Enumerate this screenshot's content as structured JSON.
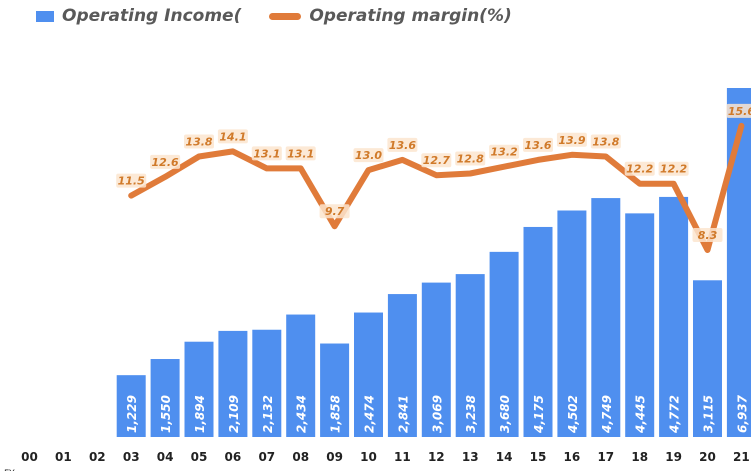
{
  "chart_data": {
    "type": "bar",
    "categories": [
      "00",
      "01",
      "02",
      "03",
      "04",
      "05",
      "06",
      "07",
      "08",
      "09",
      "10",
      "11",
      "12",
      "13",
      "14",
      "15",
      "16",
      "17",
      "18",
      "19",
      "20",
      "21"
    ],
    "series": [
      {
        "name": "Operating Income(",
        "kind": "bar",
        "values": [
          null,
          null,
          null,
          1229,
          1550,
          1894,
          2109,
          2132,
          2434,
          1858,
          2474,
          2841,
          3069,
          3238,
          3680,
          4175,
          4502,
          4749,
          4445,
          4772,
          3115,
          6937
        ],
        "labels": [
          null,
          null,
          null,
          "1,229",
          "1,550",
          "1,894",
          "2,109",
          "2,132",
          "2,434",
          "1,858",
          "2,474",
          "2,841",
          "3,069",
          "3,238",
          "3,680",
          "4,175",
          "4,502",
          "4,749",
          "4,445",
          "4,772",
          "3,115",
          "6,937"
        ]
      },
      {
        "name": "Operating margin(%)",
        "kind": "line",
        "values": [
          null,
          null,
          null,
          11.5,
          12.6,
          13.8,
          14.1,
          13.1,
          13.1,
          9.7,
          13.0,
          13.6,
          12.7,
          12.8,
          13.2,
          13.6,
          13.9,
          13.8,
          12.2,
          12.2,
          8.3,
          15.6
        ],
        "labels": [
          null,
          null,
          null,
          "11.5",
          "12.6",
          "13.8",
          "14.1",
          "13.1",
          "13.1",
          "9.7",
          "13.0",
          "13.6",
          "12.7",
          "12.8",
          "13.2",
          "13.6",
          "13.9",
          "13.8",
          "12.2",
          "12.2",
          "8.3",
          "15.6"
        ]
      }
    ],
    "x_axis_extra_label": "FY",
    "colors": {
      "bar": "#4f8fef",
      "line": "#e07b3a",
      "line_label": "#d07a2a",
      "bar_label": "#ffffff",
      "axis_text": "#222222"
    }
  }
}
